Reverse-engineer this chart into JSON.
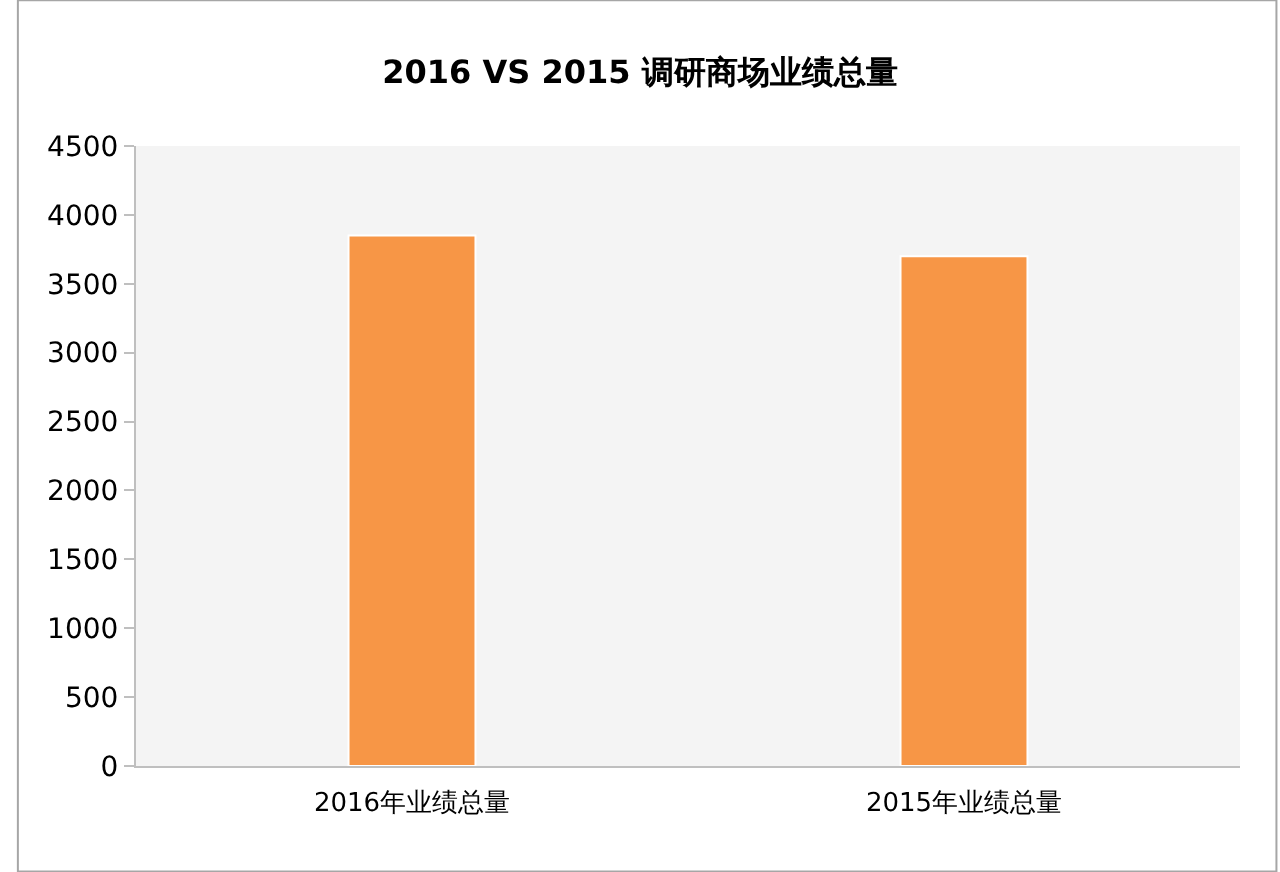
{
  "chart_data": {
    "type": "bar",
    "title": "2016 VS 2015 调研商场业绩总量",
    "categories": [
      "2016年业绩总量",
      "2015年业绩总量"
    ],
    "values": [
      3850,
      3700
    ],
    "color": "#f79646",
    "ylim": [
      0,
      4500
    ],
    "yticks": [
      0,
      500,
      1000,
      1500,
      2000,
      2500,
      3000,
      3500,
      4000,
      4500
    ]
  }
}
